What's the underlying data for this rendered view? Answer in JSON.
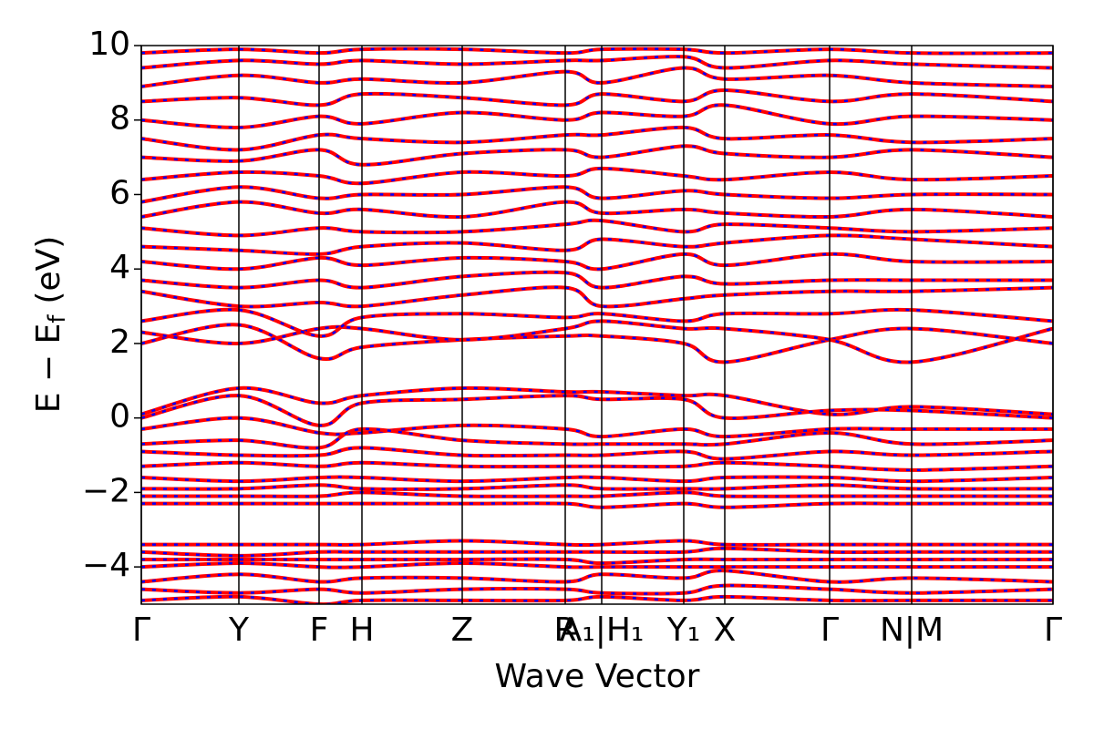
{
  "chart_data": {
    "type": "line",
    "xlabel": "Wave Vector",
    "ylabel": "E − E",
    "ylabel_subscript": "f",
    "ylabel_unit": "(eV)",
    "line_color": "#ff0000",
    "dash_color": "#0000ff",
    "ylim": [
      -5,
      10
    ],
    "yticks": [
      {
        "value": -4,
        "label": "−4"
      },
      {
        "value": -2,
        "label": "−2"
      },
      0,
      2,
      4,
      6,
      8,
      10
    ],
    "xlim": [
      0,
      1000
    ],
    "xticks": [
      {
        "value": 0,
        "label": "Γ"
      },
      {
        "value": 107,
        "label": "Y"
      },
      {
        "value": 195,
        "label": "F"
      },
      {
        "value": 242,
        "label": "H"
      },
      {
        "value": 352,
        "label": "Z"
      },
      {
        "value": 465,
        "label": "R"
      },
      {
        "value": 505,
        "label": "A₁|H₁"
      },
      {
        "value": 595,
        "label": "Y₁"
      },
      {
        "value": 640,
        "label": "X"
      },
      {
        "value": 755,
        "label": "Γ"
      },
      {
        "value": 845,
        "label": "N|M"
      },
      {
        "value": 1000,
        "label": "Γ"
      }
    ],
    "x": [
      0,
      107,
      195,
      242,
      352,
      465,
      505,
      595,
      640,
      755,
      845,
      1000
    ],
    "series": [
      {
        "values": [
          2.0,
          2.5,
          1.6,
          1.9,
          2.1,
          2.2,
          2.2,
          2.0,
          1.5,
          2.1,
          2.4,
          2.0
        ]
      },
      {
        "values": [
          2.3,
          2.0,
          2.4,
          2.4,
          2.1,
          2.4,
          2.6,
          2.4,
          2.4,
          2.1,
          1.5,
          2.4
        ]
      },
      {
        "values": [
          2.6,
          2.9,
          2.2,
          2.7,
          2.8,
          2.7,
          2.8,
          2.6,
          2.8,
          2.8,
          2.9,
          2.6
        ]
      },
      {
        "values": [
          3.4,
          3.0,
          3.1,
          3.0,
          3.3,
          3.5,
          3.0,
          3.2,
          3.3,
          3.4,
          3.4,
          3.5
        ]
      },
      {
        "values": [
          3.7,
          3.5,
          3.7,
          3.5,
          3.8,
          3.9,
          3.5,
          3.8,
          3.6,
          3.7,
          3.7,
          3.7
        ]
      },
      {
        "values": [
          4.2,
          4.0,
          4.3,
          4.1,
          4.3,
          4.2,
          4.0,
          4.4,
          4.1,
          4.4,
          4.2,
          4.2
        ]
      },
      {
        "values": [
          4.6,
          4.5,
          4.4,
          4.6,
          4.7,
          4.5,
          4.8,
          4.6,
          4.7,
          4.9,
          4.8,
          4.6
        ]
      },
      {
        "values": [
          5.1,
          4.9,
          5.1,
          5.0,
          5.0,
          5.2,
          5.3,
          5.0,
          5.2,
          5.1,
          5.0,
          5.1
        ]
      },
      {
        "values": [
          5.4,
          5.8,
          5.5,
          5.6,
          5.4,
          5.8,
          5.5,
          5.6,
          5.5,
          5.4,
          5.6,
          5.4
        ]
      },
      {
        "values": [
          5.8,
          6.2,
          5.9,
          6.0,
          6.0,
          6.2,
          5.9,
          6.1,
          6.0,
          5.9,
          6.0,
          6.0
        ]
      },
      {
        "values": [
          6.4,
          6.6,
          6.5,
          6.3,
          6.6,
          6.5,
          6.7,
          6.5,
          6.4,
          6.6,
          6.4,
          6.5
        ]
      },
      {
        "values": [
          7.0,
          6.9,
          7.2,
          6.8,
          7.1,
          7.2,
          7.0,
          7.3,
          7.1,
          7.0,
          7.2,
          7.0
        ]
      },
      {
        "values": [
          7.5,
          7.2,
          7.6,
          7.5,
          7.4,
          7.6,
          7.6,
          7.8,
          7.5,
          7.6,
          7.4,
          7.5
        ]
      },
      {
        "values": [
          8.0,
          7.8,
          8.1,
          7.9,
          8.2,
          8.0,
          8.2,
          8.1,
          8.4,
          7.9,
          8.1,
          8.0
        ]
      },
      {
        "values": [
          8.5,
          8.6,
          8.4,
          8.7,
          8.6,
          8.4,
          8.7,
          8.5,
          8.8,
          8.5,
          8.7,
          8.5
        ]
      },
      {
        "values": [
          8.9,
          9.2,
          9.0,
          9.1,
          9.0,
          9.3,
          9.0,
          9.4,
          9.1,
          9.2,
          9.0,
          8.9
        ]
      },
      {
        "values": [
          9.4,
          9.6,
          9.5,
          9.6,
          9.5,
          9.6,
          9.6,
          9.7,
          9.4,
          9.6,
          9.5,
          9.4
        ]
      },
      {
        "values": [
          9.8,
          9.9,
          9.8,
          9.9,
          9.9,
          9.8,
          9.9,
          9.9,
          9.8,
          9.9,
          9.8,
          9.8
        ]
      },
      {
        "values": [
          0.1,
          0.8,
          0.4,
          0.6,
          0.8,
          0.7,
          0.7,
          0.6,
          0.6,
          0.1,
          0.3,
          0.1
        ]
      },
      {
        "values": [
          0.0,
          0.6,
          -0.2,
          0.4,
          0.5,
          0.6,
          0.5,
          0.5,
          0.0,
          0.2,
          0.2,
          0.0
        ]
      },
      {
        "values": [
          -0.3,
          0.0,
          -0.4,
          -0.4,
          -0.2,
          -0.3,
          -0.5,
          -0.3,
          -0.5,
          -0.3,
          -0.3,
          -0.3
        ]
      },
      {
        "values": [
          -0.7,
          -0.6,
          -0.8,
          -0.3,
          -0.6,
          -0.7,
          -0.7,
          -0.7,
          -0.7,
          -0.4,
          -0.7,
          -0.6
        ]
      },
      {
        "values": [
          -0.9,
          -1.0,
          -1.0,
          -0.8,
          -1.0,
          -1.0,
          -1.0,
          -0.9,
          -1.1,
          -0.9,
          -1.0,
          -0.9
        ]
      },
      {
        "values": [
          -1.3,
          -1.2,
          -1.3,
          -1.2,
          -1.3,
          -1.3,
          -1.3,
          -1.3,
          -1.2,
          -1.3,
          -1.4,
          -1.3
        ]
      },
      {
        "values": [
          -1.6,
          -1.7,
          -1.6,
          -1.6,
          -1.7,
          -1.6,
          -1.6,
          -1.7,
          -1.6,
          -1.6,
          -1.7,
          -1.6
        ]
      },
      {
        "values": [
          -1.9,
          -1.9,
          -1.8,
          -1.9,
          -1.9,
          -1.8,
          -1.9,
          -1.9,
          -1.9,
          -1.8,
          -1.9,
          -1.9
        ]
      },
      {
        "values": [
          -2.1,
          -2.1,
          -2.1,
          -2.0,
          -2.1,
          -2.1,
          -2.1,
          -2.0,
          -2.1,
          -2.1,
          -2.1,
          -2.1
        ]
      },
      {
        "values": [
          -2.3,
          -2.3,
          -2.3,
          -2.3,
          -2.3,
          -2.3,
          -2.4,
          -2.3,
          -2.4,
          -2.3,
          -2.3,
          -2.3
        ]
      },
      {
        "values": [
          -3.4,
          -3.4,
          -3.4,
          -3.4,
          -3.3,
          -3.4,
          -3.4,
          -3.3,
          -3.4,
          -3.4,
          -3.4,
          -3.4
        ]
      },
      {
        "values": [
          -3.6,
          -3.7,
          -3.6,
          -3.6,
          -3.6,
          -3.6,
          -3.6,
          -3.6,
          -3.5,
          -3.6,
          -3.6,
          -3.6
        ]
      },
      {
        "values": [
          -3.8,
          -3.8,
          -3.8,
          -3.8,
          -3.8,
          -3.8,
          -3.9,
          -3.8,
          -3.8,
          -3.8,
          -3.8,
          -3.8
        ]
      },
      {
        "values": [
          -4.0,
          -3.9,
          -4.0,
          -4.0,
          -3.9,
          -4.0,
          -4.0,
          -4.0,
          -4.0,
          -4.0,
          -4.0,
          -4.0
        ]
      },
      {
        "values": [
          -4.4,
          -4.2,
          -4.4,
          -4.3,
          -4.3,
          -4.4,
          -4.2,
          -4.3,
          -4.1,
          -4.4,
          -4.3,
          -4.4
        ]
      },
      {
        "values": [
          -4.6,
          -4.7,
          -4.6,
          -4.7,
          -4.6,
          -4.6,
          -4.7,
          -4.7,
          -4.5,
          -4.6,
          -4.7,
          -4.6
        ]
      },
      {
        "values": [
          -4.9,
          -4.8,
          -5.0,
          -4.9,
          -4.9,
          -4.9,
          -4.8,
          -4.9,
          -4.8,
          -4.9,
          -4.9,
          -4.9
        ]
      }
    ]
  }
}
